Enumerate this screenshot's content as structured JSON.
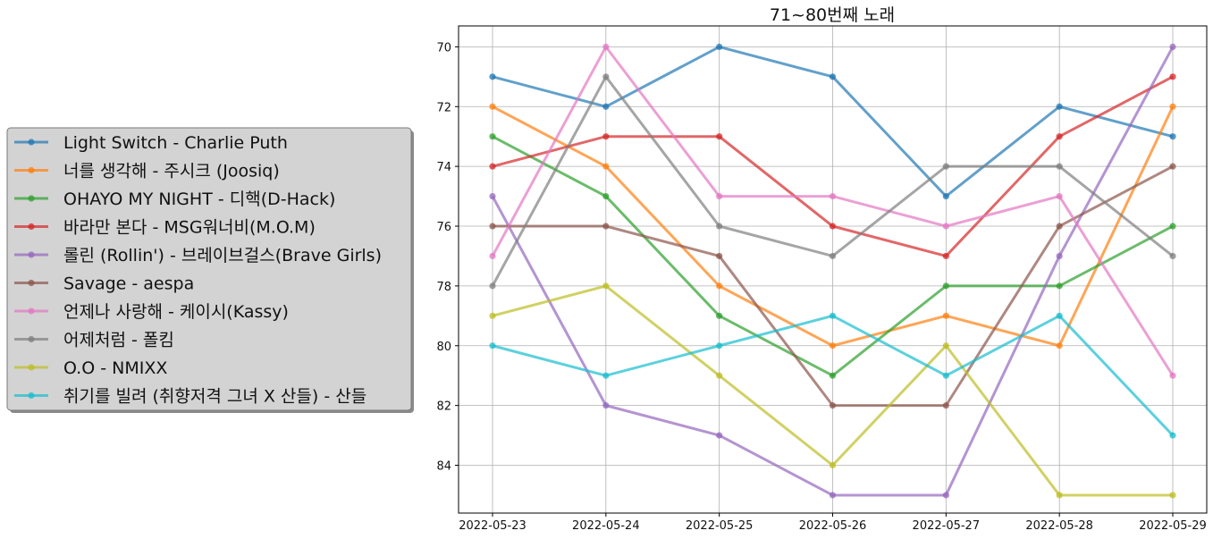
{
  "chart_data": {
    "type": "line",
    "title": "71~80번째 노래",
    "xlabel": "",
    "ylabel": "",
    "y_inverted": true,
    "ylim": [
      85.6,
      69.3
    ],
    "yticks": [
      70,
      72,
      74,
      76,
      78,
      80,
      82,
      84
    ],
    "grid": true,
    "legend_position": "left",
    "categories": [
      "2022-05-23",
      "2022-05-24",
      "2022-05-25",
      "2022-05-26",
      "2022-05-27",
      "2022-05-28",
      "2022-05-29"
    ],
    "series": [
      {
        "name": "Light Switch - Charlie Puth",
        "color": "#1f77b4",
        "values": [
          71,
          72,
          70,
          71,
          75,
          72,
          73
        ]
      },
      {
        "name": "너를 생각해 - 주시크 (Joosiq)",
        "color": "#ff7f0e",
        "values": [
          72,
          74,
          78,
          80,
          79,
          80,
          72
        ]
      },
      {
        "name": "OHAYO MY NIGHT - 디핵(D-Hack)",
        "color": "#2ca02c",
        "values": [
          73,
          75,
          79,
          81,
          78,
          78,
          76
        ]
      },
      {
        "name": "바라만 본다 - MSG워너비(M.O.M)",
        "color": "#d62728",
        "values": [
          74,
          73,
          73,
          76,
          77,
          73,
          71
        ]
      },
      {
        "name": "롤린 (Rollin') - 브레이브걸스(Brave Girls)",
        "color": "#9467bd",
        "values": [
          75,
          82,
          83,
          85,
          85,
          77,
          70
        ]
      },
      {
        "name": "Savage - aespa",
        "color": "#8c564b",
        "values": [
          76,
          76,
          77,
          82,
          82,
          76,
          74
        ]
      },
      {
        "name": "언제나 사랑해 - 케이시(Kassy)",
        "color": "#e377c2",
        "values": [
          77,
          70,
          75,
          75,
          76,
          75,
          81
        ]
      },
      {
        "name": "어제처럼 - 폴킴",
        "color": "#7f7f7f",
        "values": [
          78,
          71,
          76,
          77,
          74,
          74,
          77
        ]
      },
      {
        "name": "O.O - NMIXX",
        "color": "#bcbd22",
        "values": [
          79,
          78,
          81,
          84,
          80,
          85,
          85
        ]
      },
      {
        "name": "취기를 빌려 (취향저격 그녀 X 산들) - 산들",
        "color": "#17becf",
        "values": [
          80,
          81,
          80,
          79,
          81,
          79,
          83
        ]
      }
    ]
  }
}
